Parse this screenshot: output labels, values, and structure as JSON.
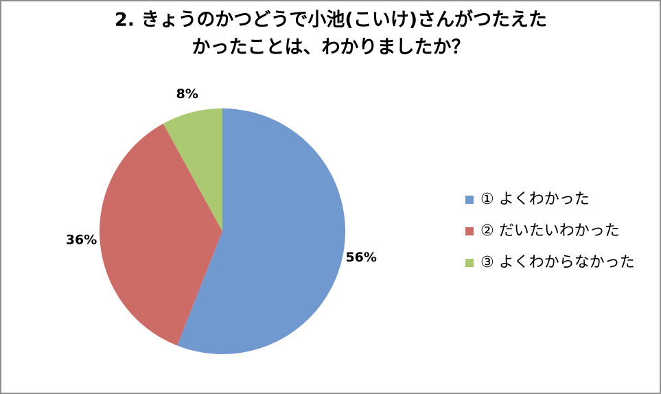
{
  "chart_data": {
    "type": "pie",
    "title": [
      "2. きょうのかつどうで小池(こいけ)さんがつたえた",
      "かったことは、わかりましたか？"
    ],
    "categories": [
      "① よくわかった",
      "② だいたいわかった",
      "③ よくわからなかった"
    ],
    "values": [
      56,
      36,
      8
    ],
    "value_labels": [
      "56%",
      "36%",
      "8%"
    ],
    "colors": [
      "#7099cf",
      "#cd6b67",
      "#aac971"
    ],
    "legend": "right"
  }
}
